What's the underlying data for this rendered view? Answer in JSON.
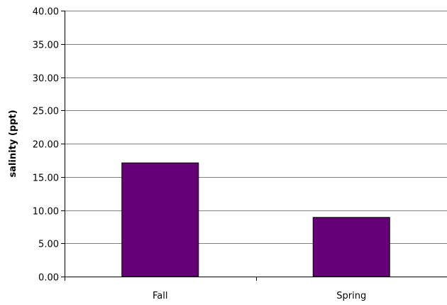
{
  "chart_data": {
    "type": "bar",
    "categories": [
      "Fall",
      "Spring"
    ],
    "values": [
      17.1,
      8.9
    ],
    "title": "",
    "xlabel": "",
    "ylabel": "salinity (ppt)",
    "ylim": [
      0,
      40
    ],
    "yticks": [
      "0.00",
      "5.00",
      "10.00",
      "15.00",
      "20.00",
      "25.00",
      "30.00",
      "35.00",
      "40.00"
    ],
    "grid": true,
    "bar_color": "#660077"
  }
}
